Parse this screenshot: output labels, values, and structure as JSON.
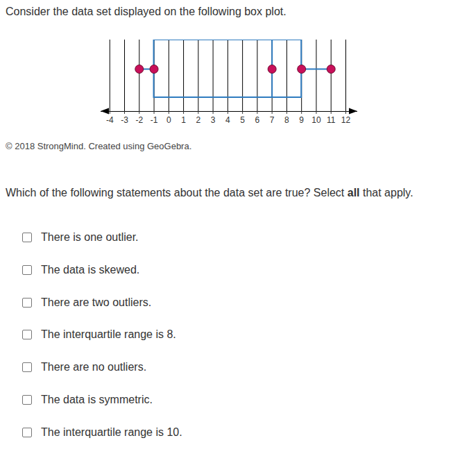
{
  "intro": "Consider the data set displayed on the following box plot.",
  "chart_data": {
    "type": "box",
    "min": -2,
    "q1": -1,
    "median": 7,
    "q3": 9,
    "max": 11,
    "color": "#2e7bbf",
    "marker": "circle",
    "xlim": [
      -4.6,
      12.8
    ],
    "xticks": [
      -4,
      -3,
      -2,
      -1,
      0,
      1,
      2,
      3,
      4,
      5,
      6,
      7,
      8,
      9,
      10,
      11,
      12
    ]
  },
  "credit": "© 2018 StrongMind. Created using GeoGebra.",
  "question": {
    "before": "Which of the following statements about the data set are true? Select ",
    "bold": "all",
    "after": " that apply."
  },
  "options": [
    "There is one outlier.",
    "The data is skewed.",
    "There are two outliers.",
    "The interquartile range is 8.",
    "There are no outliers.",
    "The data is symmetric.",
    "The interquartile range is 10."
  ]
}
